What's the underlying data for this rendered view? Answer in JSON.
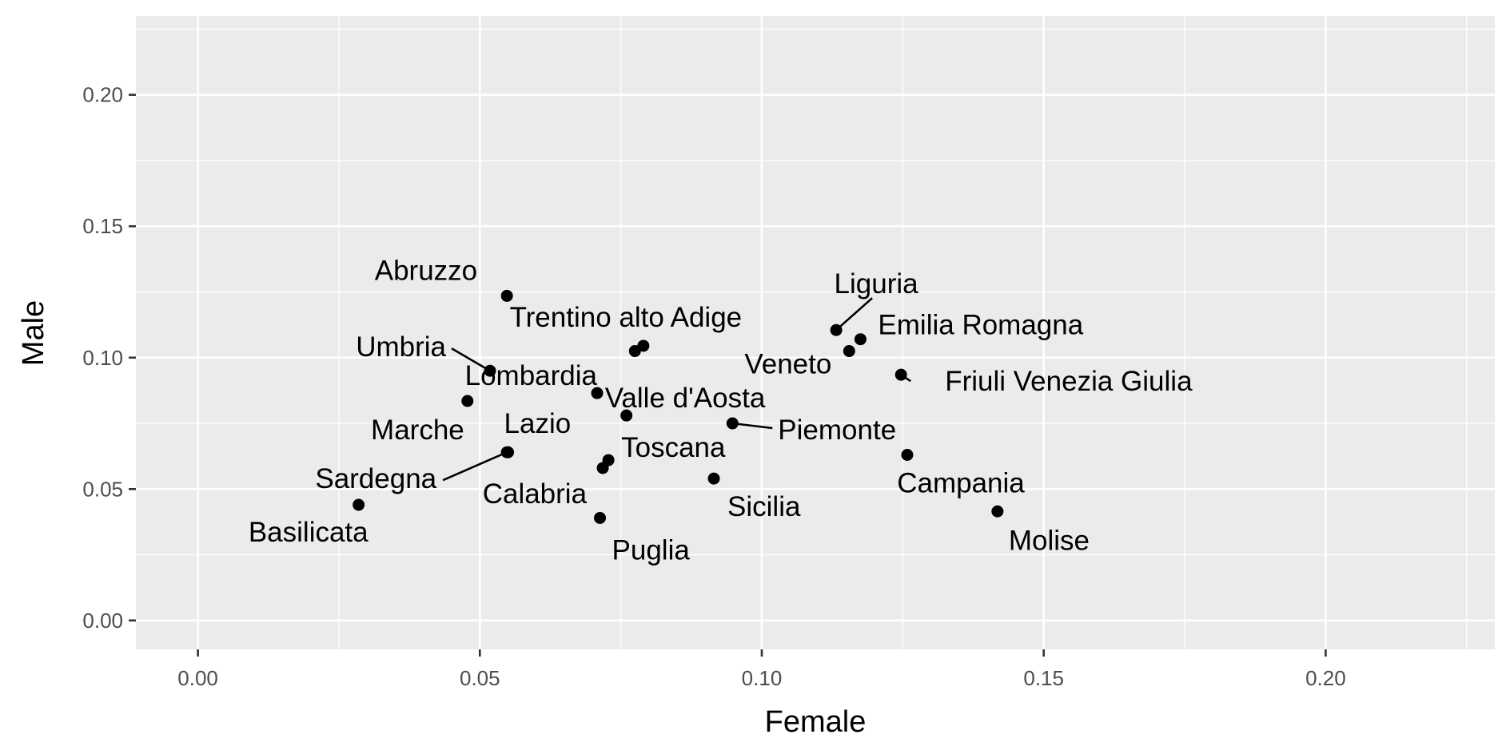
{
  "chart_data": {
    "type": "scatter",
    "title": "",
    "xlabel": "Female",
    "ylabel": "Male",
    "xlim": [
      -0.011,
      0.23
    ],
    "ylim": [
      -0.011,
      0.23
    ],
    "x_ticks": [
      0.0,
      0.05,
      0.1,
      0.15,
      0.2
    ],
    "y_ticks": [
      0.0,
      0.05,
      0.1,
      0.15,
      0.2
    ],
    "x_tick_labels": [
      "0.00",
      "0.05",
      "0.10",
      "0.15",
      "0.20"
    ],
    "y_tick_labels": [
      "0.00",
      "0.05",
      "0.10",
      "0.15",
      "0.20"
    ],
    "grid": true,
    "point_color": "#000000",
    "panel_background": "#ebebeb",
    "grid_color": "#ffffff",
    "points": [
      {
        "label": "Abruzzo",
        "x": 0.0548,
        "y": 0.1235
      },
      {
        "label": "Basilicata",
        "x": 0.0285,
        "y": 0.044
      },
      {
        "label": "Calabria",
        "x": 0.0718,
        "y": 0.058
      },
      {
        "label": "Campania",
        "x": 0.1258,
        "y": 0.063
      },
      {
        "label": "Emilia Romagna",
        "x": 0.1175,
        "y": 0.107
      },
      {
        "label": "Friuli Venezia Giulia",
        "x": 0.1247,
        "y": 0.0935
      },
      {
        "label": "Lazio",
        "x": 0.055,
        "y": 0.064
      },
      {
        "label": "Liguria",
        "x": 0.1132,
        "y": 0.1105
      },
      {
        "label": "Lombardia",
        "x": 0.0708,
        "y": 0.0865
      },
      {
        "label": "Marche",
        "x": 0.0478,
        "y": 0.0835
      },
      {
        "label": "Molise",
        "x": 0.1418,
        "y": 0.0415
      },
      {
        "label": "Piemonte",
        "x": 0.0948,
        "y": 0.075
      },
      {
        "label": "Puglia",
        "x": 0.0713,
        "y": 0.039
      },
      {
        "label": "Sardegna",
        "x": 0.0548,
        "y": 0.064
      },
      {
        "label": "Sicilia",
        "x": 0.0915,
        "y": 0.054
      },
      {
        "label": "Toscana",
        "x": 0.0728,
        "y": 0.061
      },
      {
        "label": "Trentino alto Adige",
        "x": 0.079,
        "y": 0.1045
      },
      {
        "label": "Umbria",
        "x": 0.0518,
        "y": 0.095
      },
      {
        "label": "Valle d'Aosta",
        "x": 0.076,
        "y": 0.078
      },
      {
        "label": "Veneto",
        "x": 0.1155,
        "y": 0.1025
      },
      {
        "label": "",
        "x": 0.0775,
        "y": 0.1025
      }
    ]
  }
}
